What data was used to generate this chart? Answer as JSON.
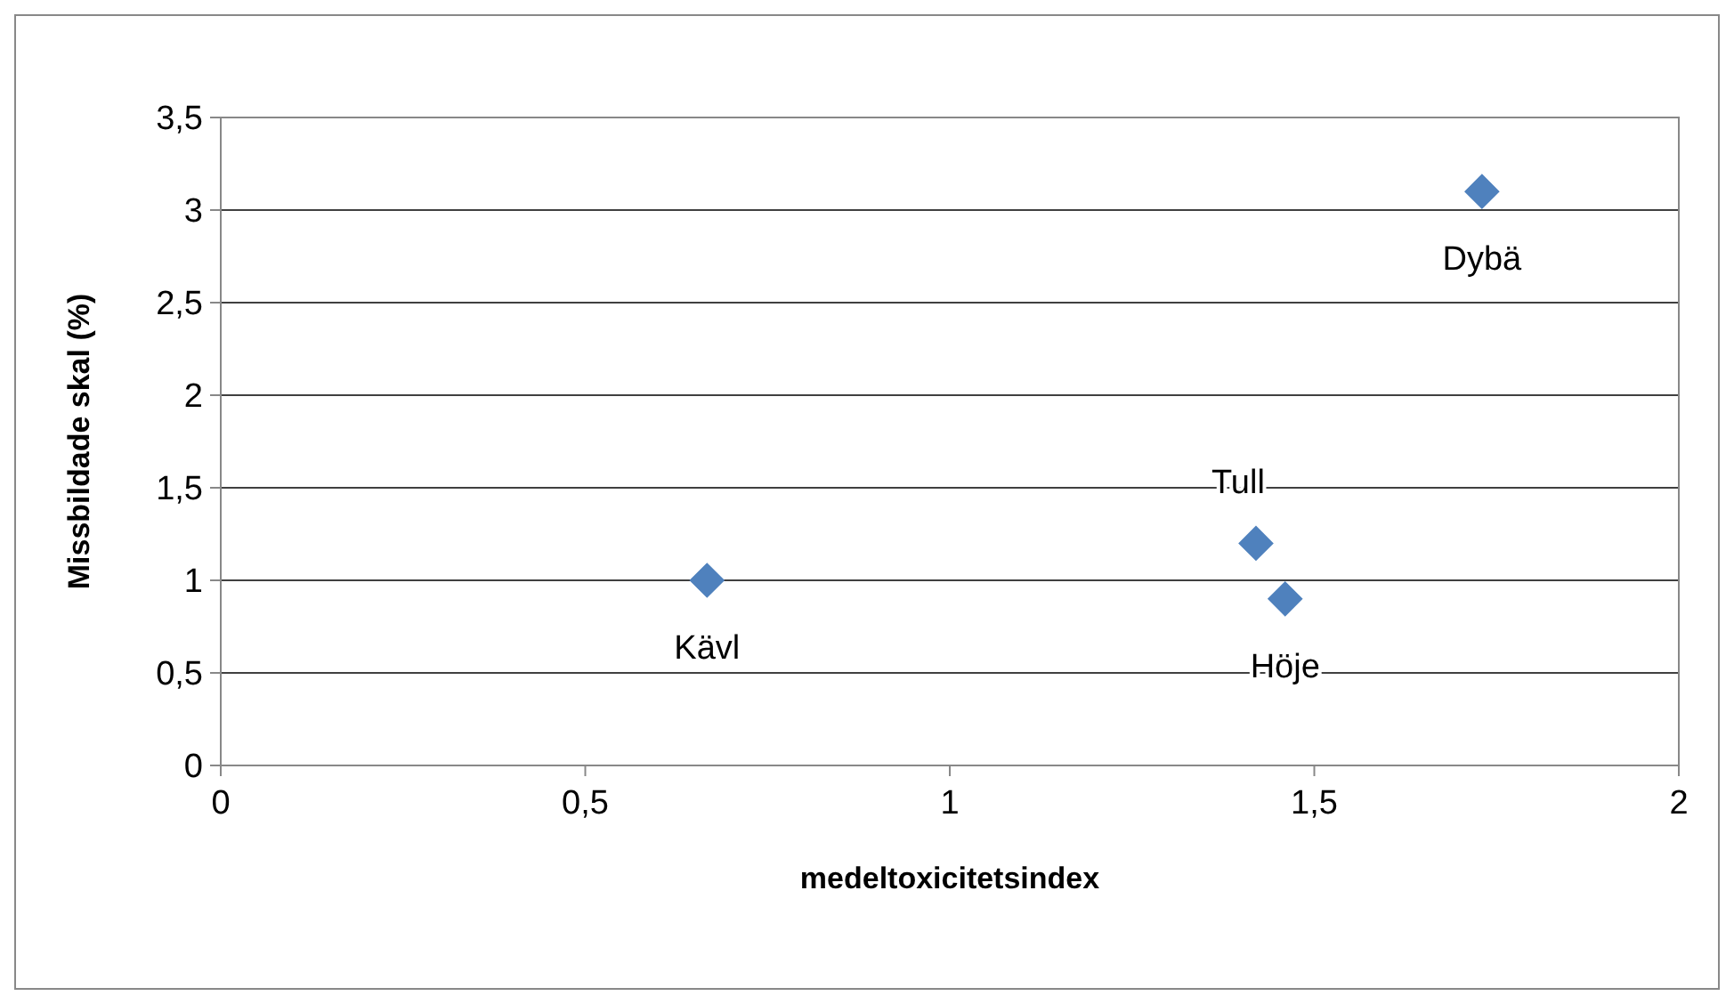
{
  "chart_data": {
    "type": "scatter",
    "xlabel": "medeltoxicitetsindex",
    "ylabel": "Missbildade skal (%)",
    "x": [
      0.667,
      1.42,
      1.46,
      1.73
    ],
    "series": [
      {
        "color": "#4f81bd",
        "values": [
          1.0,
          1.2,
          0.9,
          3.1
        ]
      }
    ],
    "xlim": [
      0,
      2
    ],
    "xticks": [
      0,
      {
        "value": 0.5,
        "label": "0,5"
      },
      1,
      {
        "value": 1.5,
        "label": "1,5"
      },
      2
    ],
    "ylim": [
      0,
      3.5
    ],
    "yticks": [
      0,
      {
        "value": 0.5,
        "label": "0,5"
      },
      1,
      {
        "value": 1.5,
        "label": "1,5"
      },
      2,
      {
        "value": 2.5,
        "label": "2,5"
      },
      3,
      {
        "value": 3.5,
        "label": "3,5"
      }
    ],
    "grid": "y",
    "marker": "diamond",
    "annotations": [
      {
        "text": "Kävl",
        "x": 0.667,
        "y": 1.0
      },
      {
        "text": "Tull",
        "x": 1.42,
        "y": 1.2
      },
      {
        "text": "Höje",
        "x": 1.46,
        "y": 0.9
      },
      {
        "text": "Dybä",
        "x": 1.73,
        "y": 3.1
      }
    ]
  }
}
